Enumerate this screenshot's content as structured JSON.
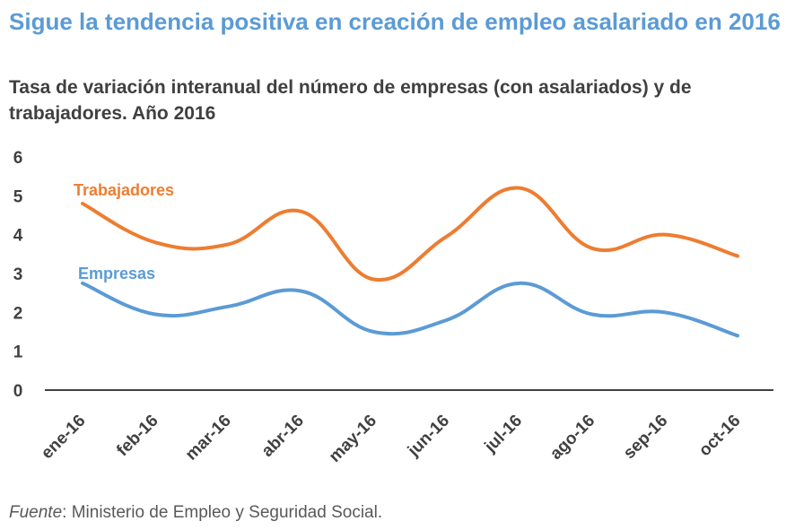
{
  "header": {
    "title": "Sigue la tendencia positiva en creación de empleo asalariado en 2016",
    "subtitle": "Tasa de variación interanual del número de empresas (con asalariados) y de trabajadores. Año 2016"
  },
  "footer": {
    "source_label": "Fuente",
    "source_text": ": Ministerio de Empleo y Seguridad Social."
  },
  "chart_data": {
    "type": "line",
    "title": "Sigue la tendencia positiva en creación de empleo asalariado en 2016",
    "subtitle": "Tasa de variación interanual del número de empresas (con asalariados) y de trabajadores. Año 2016",
    "xlabel": "",
    "ylabel": "",
    "categories": [
      "ene-16",
      "feb-16",
      "mar-16",
      "abr-16",
      "may-16",
      "jun-16",
      "jul-16",
      "ago-16",
      "sep-16",
      "oct-16"
    ],
    "ylim": [
      0,
      6
    ],
    "yticks": [
      0,
      1,
      2,
      3,
      4,
      5,
      6
    ],
    "grid": false,
    "legend": "inline labels",
    "series": [
      {
        "name": "Trabajadores",
        "color": "#ed7d31",
        "values": [
          4.8,
          3.8,
          3.75,
          4.6,
          2.85,
          3.95,
          5.2,
          3.65,
          4.0,
          3.45
        ]
      },
      {
        "name": "Empresas",
        "color": "#5b9bd5",
        "values": [
          2.75,
          1.95,
          2.15,
          2.55,
          1.5,
          1.8,
          2.75,
          1.95,
          2.0,
          1.4
        ]
      }
    ]
  }
}
